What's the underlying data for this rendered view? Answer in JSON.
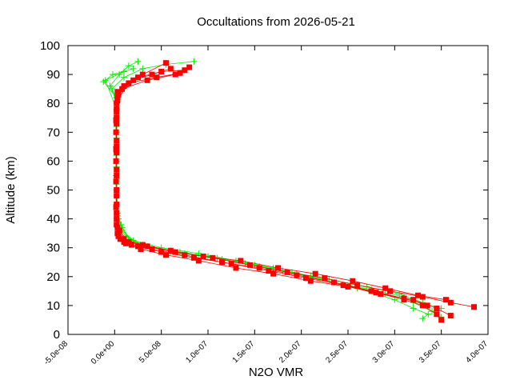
{
  "chart_data": {
    "type": "scatter",
    "title": "Occultations from 2026-05-21",
    "xlabel": "N2O VMR",
    "ylabel": "Altitude (km)",
    "xlim": [
      -5e-08,
      4e-07
    ],
    "ylim": [
      0,
      100
    ],
    "grid": false,
    "legend": "none",
    "x_ticks": [
      -5e-08,
      0,
      5e-08,
      1e-07,
      1.5e-07,
      2e-07,
      2.5e-07,
      3e-07,
      3.5e-07,
      4e-07
    ],
    "x_tick_labels": [
      "-5.0e-08",
      "0.0e+00",
      "5.0e-08",
      "1.0e-07",
      "1.5e-07",
      "2.0e-07",
      "2.5e-07",
      "3.0e-07",
      "3.5e-07",
      "4.0e-07"
    ],
    "y_ticks": [
      0,
      10,
      20,
      30,
      40,
      50,
      60,
      70,
      80,
      90,
      100
    ],
    "y_tick_labels": [
      "0",
      "10",
      "20",
      "30",
      "40",
      "50",
      "60",
      "70",
      "80",
      "90",
      "100"
    ],
    "series": [
      {
        "color": "#00ee00",
        "marker": "plus",
        "profiles": [
          [
            [
              3.3e-07,
              5.5
            ],
            [
              3.36e-07,
              7
            ],
            [
              3.2e-07,
              9
            ],
            [
              3e-07,
              12
            ],
            [
              2.6e-07,
              16
            ],
            [
              2.2e-07,
              19
            ],
            [
              1.8e-07,
              22
            ],
            [
              1.4e-07,
              24.5
            ],
            [
              1e-07,
              27
            ],
            [
              6e-08,
              29
            ],
            [
              3e-08,
              31
            ],
            [
              1.2e-08,
              34
            ],
            [
              5e-09,
              37
            ],
            [
              3e-09,
              40
            ],
            [
              2e-09,
              45
            ],
            [
              1.5e-09,
              55
            ],
            [
              1.5e-09,
              65
            ],
            [
              1.5e-09,
              75
            ],
            [
              2e-09,
              82
            ],
            [
              -5e-09,
              86
            ],
            [
              5e-09,
              90
            ],
            [
              1.5e-08,
              93
            ],
            [
              2.5e-08,
              94.5
            ]
          ],
          [
            [
              3.5e-07,
              6
            ],
            [
              3.4e-07,
              8
            ],
            [
              3.2e-07,
              11
            ],
            [
              2.9e-07,
              14
            ],
            [
              2.5e-07,
              17
            ],
            [
              2.1e-07,
              20
            ],
            [
              1.7e-07,
              23
            ],
            [
              1.3e-07,
              25.5
            ],
            [
              9e-08,
              28
            ],
            [
              5e-08,
              30
            ],
            [
              2e-08,
              32.5
            ],
            [
              8e-09,
              36
            ],
            [
              4e-09,
              40
            ],
            [
              2e-09,
              50
            ],
            [
              2e-09,
              60
            ],
            [
              2e-09,
              70
            ],
            [
              2e-09,
              80
            ],
            [
              -3e-09,
              85
            ],
            [
              1e-08,
              89
            ],
            [
              3e-08,
              92
            ],
            [
              5.5e-08,
              93.5
            ],
            [
              8.5e-08,
              94.5
            ]
          ],
          [
            [
              3.5e-07,
              9
            ],
            [
              3.3e-07,
              11
            ],
            [
              3.05e-07,
              14
            ],
            [
              2.7e-07,
              16.5
            ],
            [
              2.3e-07,
              19
            ],
            [
              1.9e-07,
              21.5
            ],
            [
              1.5e-07,
              24
            ],
            [
              1.1e-07,
              26.5
            ],
            [
              7e-08,
              28.5
            ],
            [
              3.5e-08,
              30.5
            ],
            [
              1.5e-08,
              33
            ],
            [
              7e-09,
              38
            ],
            [
              3e-09,
              42
            ],
            [
              2e-09,
              48
            ],
            [
              2e-09,
              58
            ],
            [
              2e-09,
              68
            ],
            [
              2e-09,
              78
            ],
            [
              -1e-08,
              88
            ],
            [
              1e-08,
              91
            ]
          ],
          [
            [
              3.1e-07,
              13
            ],
            [
              2.75e-07,
              15.5
            ],
            [
              2.35e-07,
              18
            ],
            [
              1.95e-07,
              21
            ],
            [
              1.55e-07,
              23.5
            ],
            [
              1.15e-07,
              26
            ],
            [
              7.5e-08,
              28
            ],
            [
              4e-08,
              30
            ],
            [
              1.8e-08,
              32
            ],
            [
              8e-09,
              37
            ],
            [
              3e-09,
              41
            ],
            [
              2e-09,
              52
            ],
            [
              2e-09,
              62
            ],
            [
              2e-09,
              72
            ],
            [
              2e-09,
              82
            ],
            [
              -1.2e-08,
              87.5
            ],
            [
              -2e-09,
              90
            ],
            [
              2e-08,
              92
            ]
          ]
        ]
      },
      {
        "color": "#ff0000",
        "marker": "square",
        "profiles": [
          [
            [
              3.5e-07,
              5
            ],
            [
              3.45e-07,
              7
            ],
            [
              3.3e-07,
              10
            ],
            [
              3.1e-07,
              12
            ],
            [
              2.8e-07,
              14.5
            ],
            [
              2.45e-07,
              17
            ],
            [
              2.05e-07,
              19.5
            ],
            [
              1.65e-07,
              22
            ],
            [
              1.25e-07,
              24.5
            ],
            [
              8.5e-08,
              26.5
            ],
            [
              5e-08,
              28.5
            ],
            [
              2.5e-08,
              30.5
            ],
            [
              1e-08,
              32
            ],
            [
              3e-09,
              35
            ],
            [
              2e-09,
              40
            ],
            [
              2e-09,
              50
            ],
            [
              1.5e-09,
              60
            ],
            [
              1.5e-09,
              70
            ],
            [
              2e-09,
              78
            ],
            [
              3e-09,
              84
            ],
            [
              2e-08,
              88
            ],
            [
              4e-08,
              90
            ],
            [
              6e-08,
              92
            ]
          ],
          [
            [
              3.85e-07,
              9.5
            ],
            [
              3.6e-07,
              11
            ],
            [
              3.3e-07,
              13
            ],
            [
              2.95e-07,
              15
            ],
            [
              2.6e-07,
              17
            ],
            [
              2.25e-07,
              19.5
            ],
            [
              1.85e-07,
              21.5
            ],
            [
              1.45e-07,
              24
            ],
            [
              1.05e-07,
              26.5
            ],
            [
              6.5e-08,
              28.5
            ],
            [
              3.5e-08,
              30.5
            ],
            [
              1.5e-08,
              32
            ],
            [
              5e-09,
              36
            ],
            [
              2e-09,
              42
            ],
            [
              2e-09,
              55
            ],
            [
              2e-09,
              65
            ],
            [
              2e-09,
              75
            ],
            [
              4e-09,
              83
            ],
            [
              2.5e-08,
              89
            ],
            [
              5e-08,
              91
            ],
            [
              7.5e-08,
              91.5
            ]
          ],
          [
            [
              3.6e-07,
              6.5
            ],
            [
              3.45e-07,
              9
            ],
            [
              3.2e-07,
              12
            ],
            [
              2.85e-07,
              14
            ],
            [
              2.5e-07,
              16.5
            ],
            [
              2.1e-07,
              18.5
            ],
            [
              1.7e-07,
              21
            ],
            [
              1.3e-07,
              23
            ],
            [
              9e-08,
              25.5
            ],
            [
              5.5e-08,
              27.5
            ],
            [
              2.8e-08,
              29.5
            ],
            [
              1.2e-08,
              31.5
            ],
            [
              4e-09,
              34
            ],
            [
              2e-09,
              45
            ],
            [
              2e-09,
              57
            ],
            [
              2e-09,
              67
            ],
            [
              2e-09,
              77
            ],
            [
              3e-09,
              82
            ],
            [
              1e-08,
              86
            ],
            [
              3e-08,
              90
            ],
            [
              5.5e-08,
              94
            ]
          ],
          [
            [
              3.35e-07,
              10
            ],
            [
              3.1e-07,
              12.5
            ],
            [
              2.75e-07,
              15
            ],
            [
              2.35e-07,
              18
            ],
            [
              1.95e-07,
              20.5
            ],
            [
              1.55e-07,
              23
            ],
            [
              1.15e-07,
              25
            ],
            [
              7.5e-08,
              27.5
            ],
            [
              4e-08,
              29.5
            ],
            [
              1.8e-08,
              31
            ],
            [
              6e-09,
              33
            ],
            [
              2e-09,
              38
            ],
            [
              2e-09,
              48
            ],
            [
              2e-09,
              63
            ],
            [
              2e-09,
              73
            ],
            [
              2e-09,
              80
            ],
            [
              8e-09,
              85
            ],
            [
              3.5e-08,
              88
            ],
            [
              6.5e-08,
              90
            ],
            [
              8e-08,
              92.5
            ]
          ],
          [
            [
              3.55e-07,
              12
            ],
            [
              3.25e-07,
              13.5
            ],
            [
              2.9e-07,
              16
            ],
            [
              2.55e-07,
              18.5
            ],
            [
              2.15e-07,
              21
            ],
            [
              1.75e-07,
              23
            ],
            [
              1.35e-07,
              25.5
            ],
            [
              9.5e-08,
              27
            ],
            [
              6e-08,
              29
            ],
            [
              3e-08,
              31
            ],
            [
              1e-08,
              33
            ],
            [
              3e-09,
              37
            ],
            [
              1.5e-09,
              44
            ],
            [
              1.5e-09,
              53
            ],
            [
              1.5e-09,
              64
            ],
            [
              1.5e-09,
              74
            ],
            [
              3e-09,
              81
            ],
            [
              1.5e-08,
              87
            ],
            [
              4.5e-08,
              89
            ],
            [
              7e-08,
              90.5
            ]
          ]
        ]
      }
    ]
  }
}
